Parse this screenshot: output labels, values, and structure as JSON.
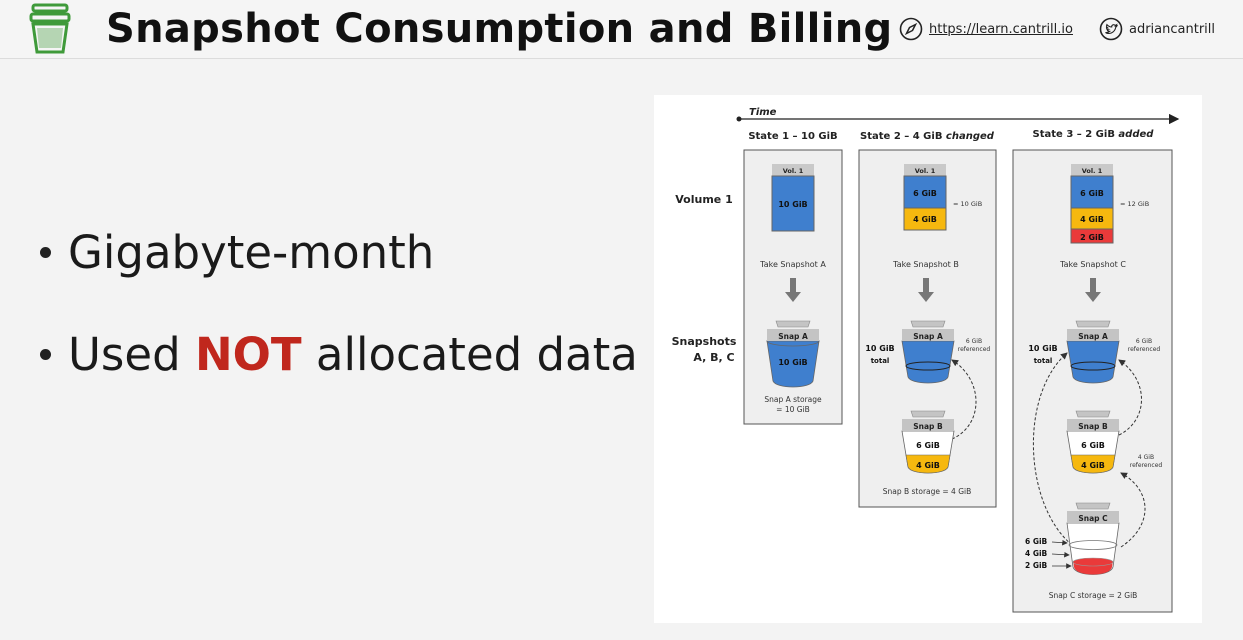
{
  "header": {
    "title": "Snapshot Consumption and Billing",
    "website_url": "https://learn.cantrill.io",
    "twitter_handle": "adriancantrill"
  },
  "bullets": [
    {
      "text": "Gigabyte-month"
    },
    {
      "pre": "Used ",
      "strong": "NOT",
      "post": " allocated data"
    }
  ],
  "diagram": {
    "time_label": "Time",
    "row_volume": "Volume 1",
    "row_snapshots_1": "Snapshots",
    "row_snapshots_2": "A, B, C",
    "state1": {
      "title": "State 1 – 10 GiB",
      "vol_label": "Vol. 1",
      "vol_value": "10 GiB",
      "action": "Take Snapshot A",
      "snap_label": "Snap A",
      "snap_value": "10 GiB",
      "storage_1": "Snap A storage",
      "storage_2": "= 10 GiB"
    },
    "state2": {
      "title_pre": "State 2 – 4 GiB ",
      "title_em": "changed",
      "vol_label": "Vol. 1",
      "vol_blue": "6 GiB",
      "vol_yellow": "4 GiB",
      "vol_total": "= 10 GiB",
      "action": "Take Snapshot B",
      "total_1": "10 GiB",
      "total_2": "total",
      "snapA_label": "Snap A",
      "ref_value": "6 GiB",
      "ref_label": "referenced",
      "snapB_label": "Snap B",
      "snapB_white": "6 GiB",
      "snapB_yellow": "4 GiB",
      "storage": "Snap B storage = 4 GiB"
    },
    "state3": {
      "title_pre": "State 3 – 2 GiB ",
      "title_em": "added",
      "vol_label": "Vol. 1",
      "vol_blue": "6 GiB",
      "vol_yellow": "4 GiB",
      "vol_red": "2 GiB",
      "vol_total": "= 12 GiB",
      "action": "Take Snapshot C",
      "total_1": "10 GiB",
      "total_2": "total",
      "snapA_label": "Snap A",
      "refA_value": "6 GiB",
      "refA_label": "referenced",
      "snapB_label": "Snap B",
      "snapB_white": "6 GiB",
      "snapB_yellow": "4 GiB",
      "refB_value": "4 GiB",
      "refB_label": "referenced",
      "snapC_label": "Snap C",
      "snapC_6": "6 GiB",
      "snapC_4": "4 GiB",
      "snapC_2": "2 GiB",
      "storage": "Snap C storage = 2 GiB"
    }
  },
  "colors": {
    "accent_red": "#c0271d",
    "blue": "#3f7fce",
    "yellow": "#f6b80f",
    "red": "#ea3a3a",
    "logo_green": "#3f9a3a"
  }
}
